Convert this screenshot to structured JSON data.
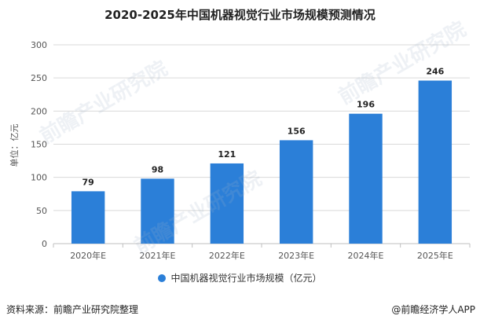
{
  "chart_data": {
    "type": "bar",
    "title": "2020-2025年中国机器视觉行业市场规模预测情况",
    "categories": [
      "2020年E",
      "2021年E",
      "2022年E",
      "2023年E",
      "2024年E",
      "2025年E"
    ],
    "series": [
      {
        "name": "中国机器视觉行业市场规模（亿元）",
        "values": [
          79,
          98,
          121,
          156,
          196,
          246
        ]
      }
    ],
    "ylabel": "单位：亿元",
    "xlabel": "",
    "ylim": [
      0,
      300
    ],
    "yticks": [
      0,
      50,
      100,
      150,
      200,
      250,
      300
    ],
    "grid": true,
    "legend": "bottom-center",
    "bar_color": "#2b7fd8"
  },
  "footer": {
    "source": "资料来源：前瞻产业研究院整理",
    "brand": "@前瞻经济学人APP"
  },
  "watermark_text": "前瞻产业研究院"
}
